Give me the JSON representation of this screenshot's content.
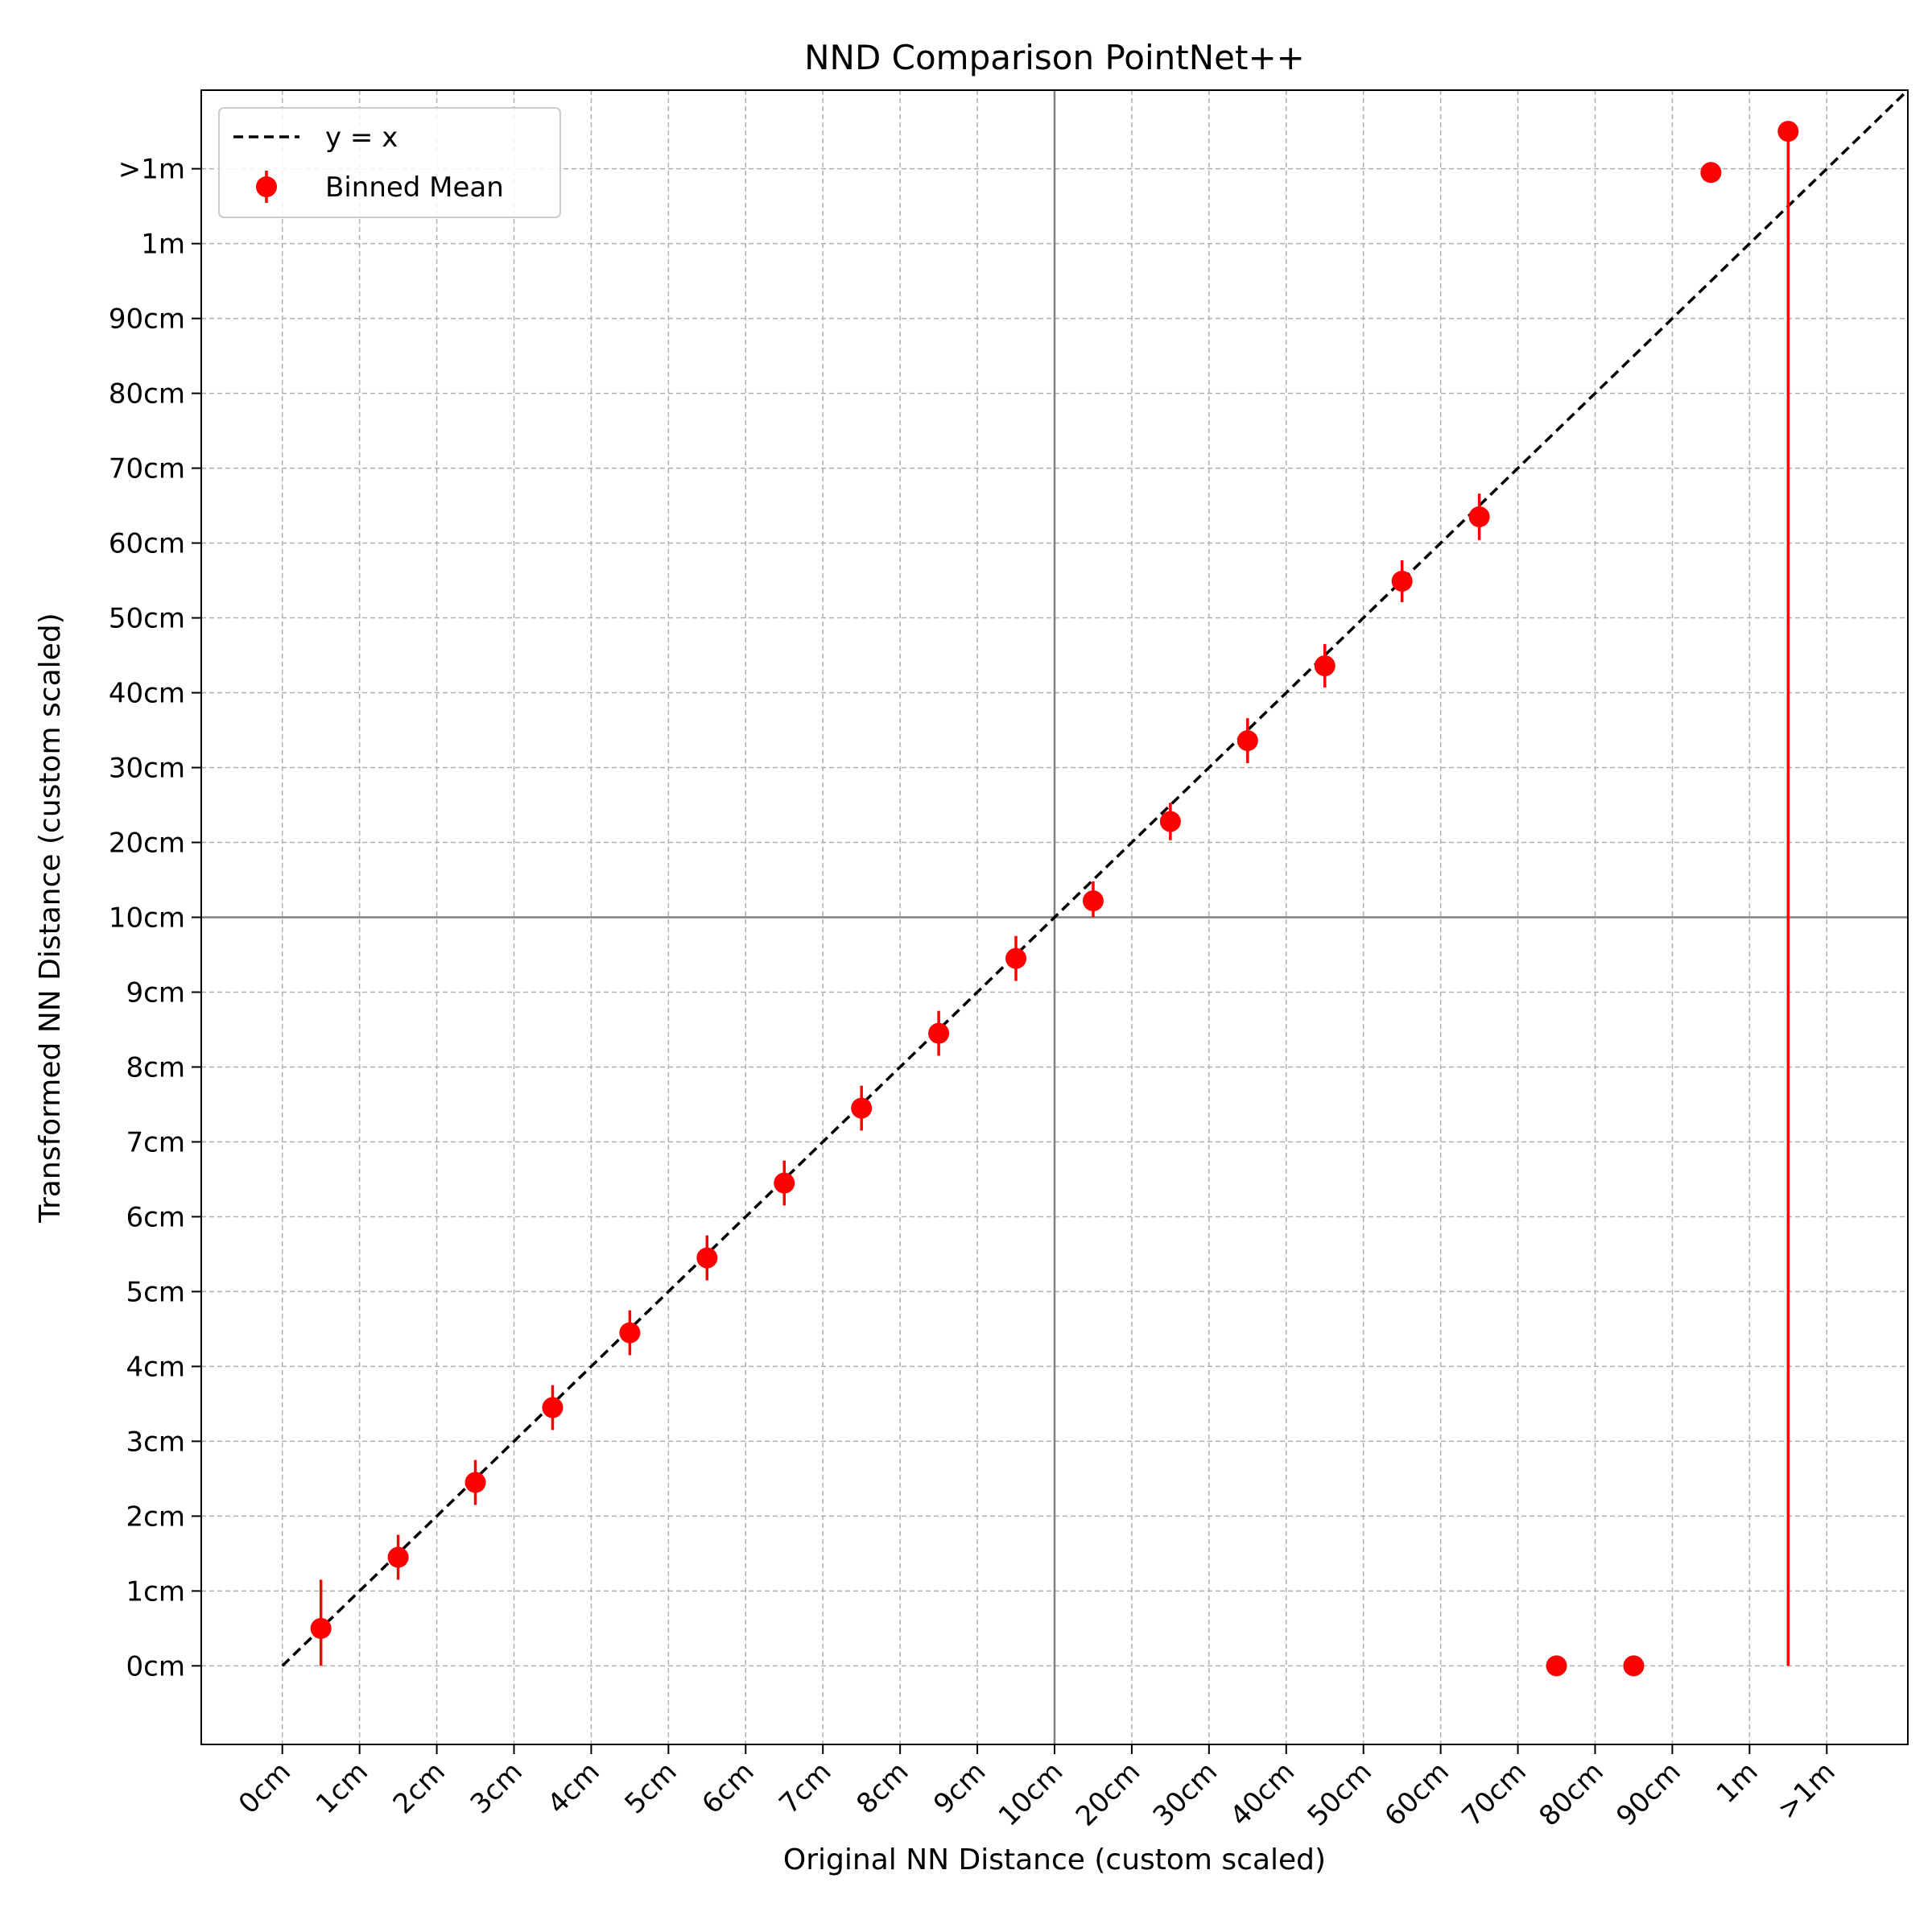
{
  "chart_data": {
    "type": "scatter",
    "title": "NND Comparison PointNet++",
    "xlabel": "Original NN Distance (custom scaled)",
    "ylabel": "Transformed NN Distance (custom scaled)",
    "x_ticks": [
      "0cm",
      "1cm",
      "2cm",
      "3cm",
      "4cm",
      "5cm",
      "6cm",
      "7cm",
      "8cm",
      "9cm",
      "10cm",
      "20cm",
      "30cm",
      "40cm",
      "50cm",
      "60cm",
      "70cm",
      "80cm",
      "90cm",
      "1m",
      ">1m"
    ],
    "y_ticks": [
      "0cm",
      "1cm",
      "2cm",
      "3cm",
      "4cm",
      "5cm",
      "6cm",
      "7cm",
      "8cm",
      "9cm",
      "10cm",
      "20cm",
      "30cm",
      "40cm",
      "50cm",
      "60cm",
      "70cm",
      "80cm",
      "90cm",
      "1m",
      ">1m"
    ],
    "scale": "piecewise: 0-10cm linear step 1cm, 10cm-1m linear step 10cm, >1m overflow bin",
    "grid": true,
    "legend_position": "top-left",
    "reference_lines": {
      "vertical": "10cm",
      "horizontal": "10cm",
      "color": "#808080"
    },
    "series": [
      {
        "name": "y = x",
        "kind": "line",
        "style": "dashed",
        "color": "#000000",
        "x": [
          "0cm",
          ">1m"
        ],
        "y": [
          "0cm",
          ">1m"
        ]
      },
      {
        "name": "Binned Mean",
        "kind": "errorbar",
        "color": "#ff0000",
        "points": [
          {
            "x": "0.5cm",
            "y": "0.5cm",
            "y_lower": "0.5cm",
            "y_upper": "1.15cm"
          },
          {
            "x": "1.5cm",
            "y": "1.45cm",
            "y_lower": "1.15cm",
            "y_upper": "1.75cm"
          },
          {
            "x": "2.5cm",
            "y": "2.45cm",
            "y_lower": "2.15cm",
            "y_upper": "2.75cm"
          },
          {
            "x": "3.5cm",
            "y": "3.45cm",
            "y_lower": "3.15cm",
            "y_upper": "3.75cm"
          },
          {
            "x": "4.5cm",
            "y": "4.45cm",
            "y_lower": "4.15cm",
            "y_upper": "4.75cm"
          },
          {
            "x": "5.5cm",
            "y": "5.45cm",
            "y_lower": "5.15cm",
            "y_upper": "5.75cm"
          },
          {
            "x": "6.5cm",
            "y": "6.45cm",
            "y_lower": "6.15cm",
            "y_upper": "6.75cm"
          },
          {
            "x": "7.5cm",
            "y": "7.45cm",
            "y_lower": "7.15cm",
            "y_upper": "7.75cm"
          },
          {
            "x": "8.5cm",
            "y": "8.45cm",
            "y_lower": "8.15cm",
            "y_upper": "8.75cm"
          },
          {
            "x": "9.5cm",
            "y": "9.45cm",
            "y_lower": "9.15cm",
            "y_upper": "9.75cm"
          },
          {
            "x": "15cm",
            "y": "12.2cm",
            "y_lower": "10cm",
            "y_upper": "14.8cm"
          },
          {
            "x": "25cm",
            "y": "22.8cm",
            "y_lower": "20.3cm",
            "y_upper": "25.3cm"
          },
          {
            "x": "35cm",
            "y": "33.6cm",
            "y_lower": "30.6cm",
            "y_upper": "36.6cm"
          },
          {
            "x": "45cm",
            "y": "43.6cm",
            "y_lower": "40.7cm",
            "y_upper": "46.5cm"
          },
          {
            "x": "55cm",
            "y": "54.9cm",
            "y_lower": "52.1cm",
            "y_upper": "57.7cm"
          },
          {
            "x": "65cm",
            "y": "63.5cm",
            "y_lower": "60.4cm",
            "y_upper": "66.6cm"
          },
          {
            "x": "75cm",
            "y": "0cm",
            "y_lower": "0cm",
            "y_upper": "0cm"
          },
          {
            "x": "85cm",
            "y": "0cm",
            "y_lower": "0cm",
            "y_upper": "0cm"
          },
          {
            "x": "95cm",
            "y": "99.5cm",
            "y_lower": "99.5cm",
            "y_upper": "99.5cm"
          },
          {
            "x": "1.5m",
            "y": "1.5m",
            "y_lower": "0cm",
            "y_upper": "1.5m"
          }
        ]
      }
    ],
    "point_positions": {
      "x": [
        0.5,
        1.5,
        2.5,
        3.5,
        4.5,
        5.5,
        6.5,
        7.5,
        8.5,
        9.5,
        10.5,
        11.5,
        12.5,
        13.5,
        14.5,
        15.5,
        16.5,
        17.5,
        18.5,
        19.5
      ],
      "y": [
        0.5,
        1.45,
        2.45,
        3.45,
        4.45,
        5.45,
        6.45,
        7.45,
        8.45,
        9.45,
        10.22,
        11.28,
        12.36,
        13.36,
        14.49,
        15.35,
        0,
        0,
        19.95,
        20.5
      ],
      "err_low": [
        0.5,
        0.3,
        0.3,
        0.3,
        0.3,
        0.3,
        0.3,
        0.3,
        0.3,
        0.3,
        0.22,
        0.25,
        0.3,
        0.29,
        0.28,
        0.31,
        0,
        0,
        0,
        20.5
      ],
      "err_high": [
        0.65,
        0.3,
        0.3,
        0.3,
        0.3,
        0.3,
        0.3,
        0.3,
        0.3,
        0.3,
        0.26,
        0.25,
        0.3,
        0.29,
        0.28,
        0.31,
        0,
        0,
        0,
        0
      ]
    },
    "axis_positions": {
      "x_range": [
        -1.05,
        21.05
      ],
      "y_breaks": [
        [
          0,
          0
        ],
        [
          10,
          10
        ],
        [
          20,
          19
        ],
        [
          21,
          20
        ]
      ],
      "y_range": [
        -1.05,
        21.05
      ]
    }
  }
}
